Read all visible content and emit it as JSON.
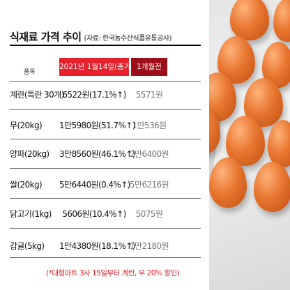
{
  "title": "식재료 가격 추이",
  "source": "(자료: 한국농수산식품유통공사)",
  "headers": {
    "item": "품목",
    "current": "2021년 1월14일(종가)",
    "month_ago": "1개월전"
  },
  "rows": [
    {
      "item": "계란(특란 30개)",
      "price": "6522원(17.1%↑)",
      "prev": "5571원"
    },
    {
      "item": "무(20kg)",
      "price": "1만5980원(51.7%↑)",
      "prev": "1만536원"
    },
    {
      "item": "양파(20kg)",
      "price": "3만8560원(46.1%↑)",
      "prev": "2만6400원"
    },
    {
      "item": "쌀(20kg)",
      "price": "5만6440원(0.4%↑)",
      "prev": "5만6216원"
    },
    {
      "item": "닭고기(1kg)",
      "price": "5606원(10.4%↑)",
      "prev": "5075원"
    },
    {
      "item": "감귤(5kg)",
      "price": "1만4380원(18.1%↑)",
      "prev": "1만2180원"
    }
  ],
  "footnote": "(*대형마트 3사 15일부터 계란, 무 20% 할인)",
  "colors": {
    "accent_red": "#e6212b",
    "dark_red": "#9c0f1a",
    "egg_orange": "#e8762f"
  },
  "illustration": "egg-tray"
}
